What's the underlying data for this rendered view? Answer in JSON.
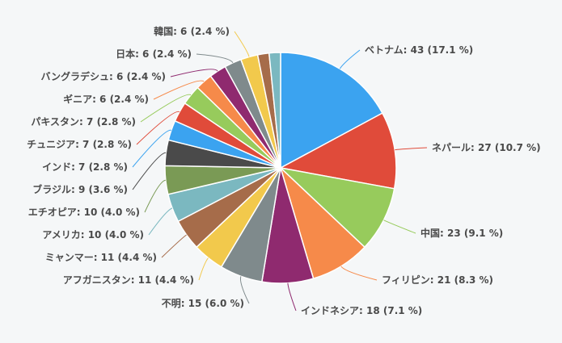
{
  "chart_data": {
    "type": "pie",
    "start_angle_deg": 0,
    "direction": "clockwise",
    "slices": [
      {
        "label": "ベトナム: 43 (17.1 %)",
        "value": 43,
        "color": "#3ba3f0"
      },
      {
        "label": "ネパール: 27 (10.7 %)",
        "value": 27,
        "color": "#e04b3a"
      },
      {
        "label": "中国: 23 (9.1 %)",
        "value": 23,
        "color": "#97cb5c"
      },
      {
        "label": "フィリピン: 21 (8.3 %)",
        "value": 21,
        "color": "#f68a4a"
      },
      {
        "label": "インドネシア: 18 (7.1 %)",
        "value": 18,
        "color": "#8f2a6f"
      },
      {
        "label": "不明: 15 (6.0 %)",
        "value": 15,
        "color": "#7f8a8c"
      },
      {
        "label": "アフガニスタン: 11 (4.4 %)",
        "value": 11,
        "color": "#f2c94c"
      },
      {
        "label": "ミャンマー: 11 (4.4 %)",
        "value": 11,
        "color": "#a66c4a"
      },
      {
        "label": "アメリカ: 10 (4.0 %)",
        "value": 10,
        "color": "#7bb8c0"
      },
      {
        "label": "エチオピア: 10 (4.0 %)",
        "value": 10,
        "color": "#7a9a55"
      },
      {
        "label": "ブラジル: 9 (3.6 %)",
        "value": 9,
        "color": "#4a4a4a"
      },
      {
        "label": "インド: 7 (2.8 %)",
        "value": 7,
        "color": "#3ba3f0"
      },
      {
        "label": "チュニジア: 7 (2.8 %)",
        "value": 7,
        "color": "#e04b3a"
      },
      {
        "label": "パキスタン: 7 (2.8 %)",
        "value": 7,
        "color": "#97cb5c"
      },
      {
        "label": "ギニア: 6 (2.4 %)",
        "value": 6,
        "color": "#f68a4a"
      },
      {
        "label": "バングラデシュ: 6 (2.4 %)",
        "value": 6,
        "color": "#8f2a6f"
      },
      {
        "label": "日本: 6 (2.4 %)",
        "value": 6,
        "color": "#7f8a8c"
      },
      {
        "label": "韓国: 6 (2.4 %)",
        "value": 6,
        "color": "#f2c94c"
      },
      {
        "label": "",
        "value": 4,
        "color": "#a66c4a"
      },
      {
        "label": "",
        "value": 4,
        "color": "#7bb8c0"
      }
    ]
  }
}
